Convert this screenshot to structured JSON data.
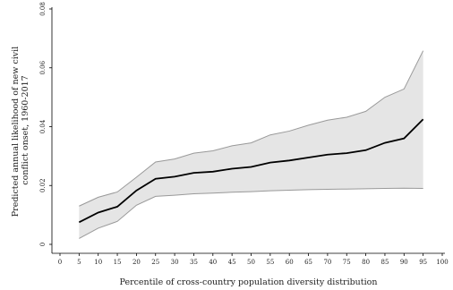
{
  "chart_data": {
    "type": "area",
    "xlabel": "Percentile of cross-country population diversity distribution",
    "ylabel_lines": [
      "Predicted annual likelihood of new civil",
      "conflict onset, 1960-2017"
    ],
    "xlim": [
      0,
      100
    ],
    "ylim": [
      0,
      0.08
    ],
    "x_ticks": [
      0,
      5,
      10,
      15,
      20,
      25,
      30,
      35,
      40,
      45,
      50,
      55,
      60,
      65,
      70,
      75,
      80,
      85,
      90,
      95,
      100
    ],
    "x_tick_labels": [
      "0",
      "5",
      "10",
      "15",
      "20",
      "25",
      "30",
      "35",
      "40",
      "45",
      "50",
      "55",
      "60",
      "65",
      "70",
      "75",
      "80",
      "85",
      "90",
      "95",
      "100"
    ],
    "y_ticks": [
      0,
      0.02,
      0.04,
      0.06,
      0.08
    ],
    "y_tick_labels": [
      "0",
      "0.02",
      "0.04",
      "0.06",
      "0.08"
    ],
    "grid": false,
    "x": [
      5,
      10,
      15,
      20,
      25,
      30,
      35,
      40,
      45,
      50,
      55,
      60,
      65,
      70,
      75,
      80,
      85,
      90,
      95
    ],
    "series": [
      {
        "role": "point-estimate",
        "color": "#000000",
        "values": [
          0.0075,
          0.0108,
          0.0128,
          0.0183,
          0.0223,
          0.023,
          0.0243,
          0.0247,
          0.0257,
          0.0263,
          0.0278,
          0.0285,
          0.0295,
          0.0305,
          0.031,
          0.032,
          0.0345,
          0.036,
          0.0425
        ]
      },
      {
        "role": "upper-bound",
        "color": "#999999",
        "values": [
          0.013,
          0.016,
          0.0178,
          0.0228,
          0.028,
          0.029,
          0.031,
          0.0318,
          0.0335,
          0.0345,
          0.0372,
          0.0385,
          0.0405,
          0.0422,
          0.0432,
          0.0452,
          0.05,
          0.0528,
          0.0658
        ]
      },
      {
        "role": "lower-bound",
        "color": "#999999",
        "values": [
          0.002,
          0.0055,
          0.0078,
          0.0133,
          0.0163,
          0.0167,
          0.0172,
          0.0174,
          0.0177,
          0.0179,
          0.0182,
          0.0184,
          0.0186,
          0.0187,
          0.0188,
          0.0189,
          0.019,
          0.0191,
          0.019
        ]
      }
    ],
    "band_fill": "#e5e5e5"
  }
}
